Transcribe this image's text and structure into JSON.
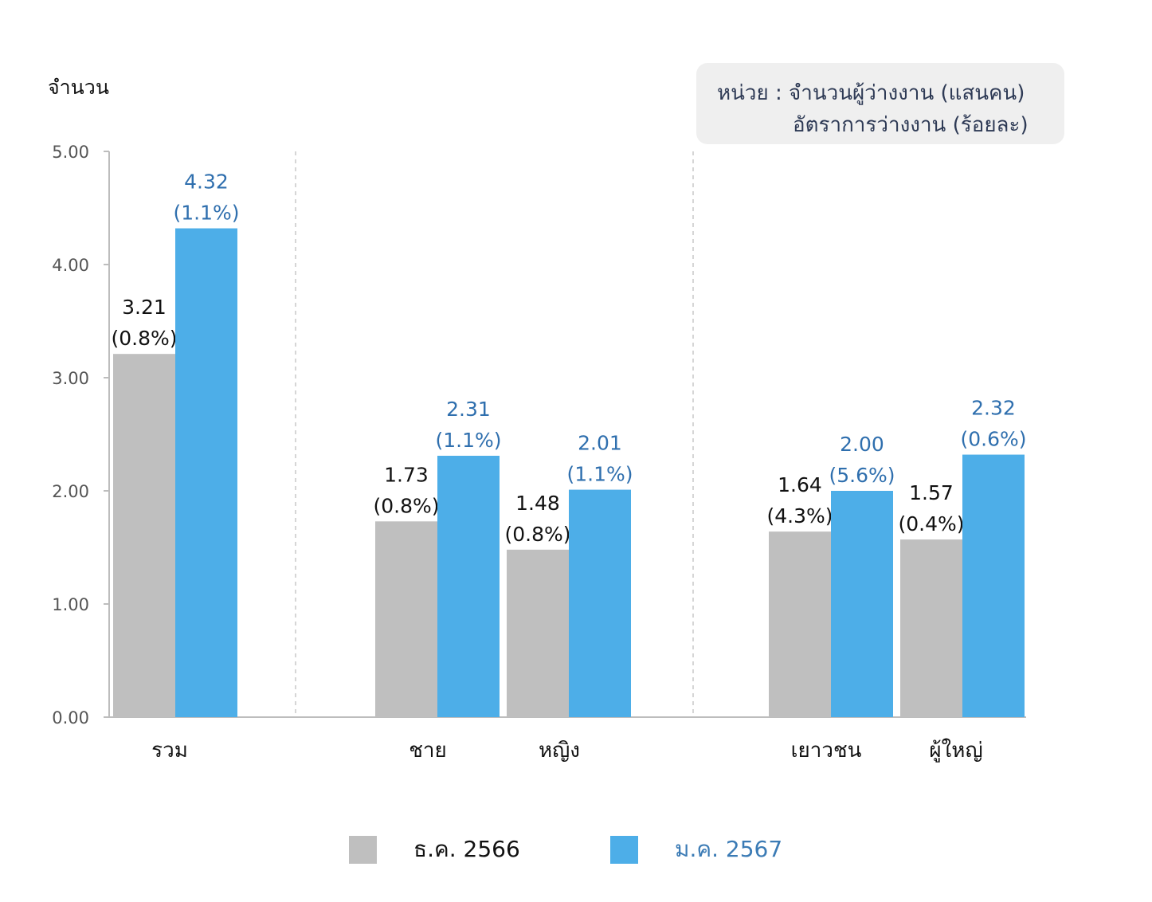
{
  "y_axis_title": "จำนวน",
  "unit_note": {
    "line1": "หน่วย : จำนวนผู้ว่างงาน (แสนคน)",
    "line2": "อัตราการว่างงาน (ร้อยละ)"
  },
  "legend": [
    {
      "label": "ธ.ค. 2566",
      "color": "#bfbfbf",
      "text_color": "#111111"
    },
    {
      "label": "ม.ค. 2567",
      "color": "#4daee8",
      "text_color": "#3b7bb5"
    }
  ],
  "colors": {
    "prev_bar": "#bfbfbf",
    "curr_bar": "#4daee8",
    "prev_label": "#111111",
    "curr_label": "#2f6fae",
    "axis": "#bdbdbd",
    "tick_label": "#555555"
  },
  "chart_data": {
    "type": "bar",
    "ylim": [
      0,
      5
    ],
    "yticks": [
      "0.00",
      "1.00",
      "2.00",
      "3.00",
      "4.00",
      "5.00"
    ],
    "grid": false,
    "legend_position": "bottom",
    "categories": [
      "รวม",
      "ชาย",
      "หญิง",
      "เยาวชน",
      "ผู้ใหญ่"
    ],
    "groups": [
      [
        "รวม"
      ],
      [
        "ชาย",
        "หญิง"
      ],
      [
        "เยาวชน",
        "ผู้ใหญ่"
      ]
    ],
    "series": [
      {
        "name": "ธ.ค. 2566",
        "values": [
          3.21,
          1.73,
          1.48,
          1.64,
          1.57
        ],
        "value_labels": [
          "3.21",
          "1.73",
          "1.48",
          "1.64",
          "1.57"
        ],
        "rate_labels": [
          "(0.8%)",
          "(0.8%)",
          "(0.8%)",
          "(4.3%)",
          "(0.4%)"
        ]
      },
      {
        "name": "ม.ค. 2567",
        "values": [
          4.32,
          2.31,
          2.01,
          2.0,
          2.32
        ],
        "value_labels": [
          "4.32",
          "2.31",
          "2.01",
          "2.00",
          "2.32"
        ],
        "rate_labels": [
          "(1.1%)",
          "(1.1%)",
          "(1.1%)",
          "(5.6%)",
          "(0.6%)"
        ]
      }
    ]
  }
}
